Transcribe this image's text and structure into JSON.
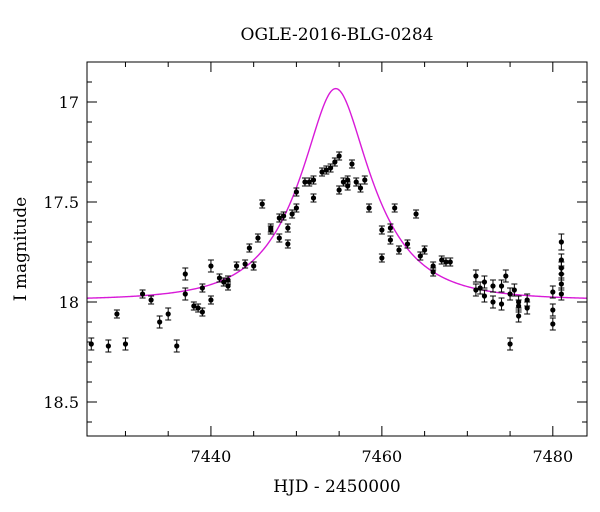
{
  "chart_data": {
    "type": "scatter",
    "title": "OGLE-2016-BLG-0284",
    "xlabel": "HJD - 2450000",
    "ylabel": "I magnitude",
    "xlim": [
      7425.5,
      7484
    ],
    "ylim": [
      18.67,
      16.8
    ],
    "y_inverted": true,
    "grid": false,
    "x_major_ticks": [
      7440,
      7460,
      7480
    ],
    "y_major_ticks": [
      17,
      17.5,
      18,
      18.5
    ],
    "x_minor_step": 5,
    "y_minor_step": 0.1,
    "model_color": "#d81ad8",
    "point_color": "#000000",
    "model": {
      "name": "",
      "t0": 7454.6,
      "u0": 0.4,
      "tE": 8.0,
      "I_base": 17.99
    },
    "series": [
      {
        "name": "",
        "x": [
          7426.0,
          7428.0,
          7429.0,
          7430.0,
          7432.0,
          7433.0,
          7434.0,
          7435.0,
          7436.0,
          7437.0,
          7437.0,
          7438.0,
          7438.5,
          7439.0,
          7439.0,
          7440.0,
          7440.0,
          7441.0,
          7441.5,
          7442.0,
          7442.0,
          7443.0,
          7444.0,
          7444.5,
          7445.0,
          7445.5,
          7446.0,
          7447.0,
          7447.0,
          7448.0,
          7448.0,
          7448.5,
          7449.0,
          7449.0,
          7449.5,
          7450.0,
          7450.0,
          7451.0,
          7451.5,
          7452.0,
          7452.0,
          7453.0,
          7453.5,
          7454.0,
          7454.5,
          7455.0,
          7455.0,
          7455.5,
          7456.0,
          7456.0,
          7456.5,
          7457.0,
          7457.5,
          7458.0,
          7458.5,
          7460.0,
          7460.0,
          7461.0,
          7461.0,
          7461.5,
          7462.0,
          7463.0,
          7464.0,
          7464.5,
          7465.0,
          7466.0,
          7466.0,
          7467.0,
          7467.5,
          7468.0,
          7471.0,
          7471.0,
          7471.5,
          7472.0,
          7472.0,
          7473.0,
          7473.0,
          7474.0,
          7474.0,
          7474.5,
          7475.0,
          7475.0,
          7475.5,
          7476.0,
          7476.0,
          7476.0,
          7477.0,
          7477.0,
          7480.0,
          7480.0,
          7480.0,
          7481.0,
          7481.0,
          7481.0,
          7481.0,
          7481.0,
          7481.0
        ],
        "y": [
          18.21,
          18.22,
          18.06,
          18.21,
          17.96,
          17.99,
          18.1,
          18.06,
          18.22,
          17.86,
          17.96,
          18.02,
          18.03,
          18.05,
          17.93,
          17.99,
          17.82,
          17.88,
          17.9,
          17.89,
          17.92,
          17.82,
          17.81,
          17.73,
          17.82,
          17.68,
          17.51,
          17.63,
          17.64,
          17.58,
          17.68,
          17.57,
          17.63,
          17.71,
          17.56,
          17.45,
          17.53,
          17.4,
          17.4,
          17.39,
          17.48,
          17.35,
          17.34,
          17.33,
          17.3,
          17.27,
          17.44,
          17.4,
          17.42,
          17.39,
          17.31,
          17.4,
          17.43,
          17.39,
          17.53,
          17.64,
          17.78,
          17.63,
          17.69,
          17.53,
          17.74,
          17.71,
          17.56,
          17.77,
          17.74,
          17.82,
          17.85,
          17.79,
          17.8,
          17.8,
          17.87,
          17.94,
          17.93,
          17.9,
          17.97,
          17.92,
          18.0,
          17.92,
          18.01,
          17.87,
          18.21,
          17.96,
          17.94,
          18.0,
          18.02,
          18.07,
          17.99,
          18.03,
          17.95,
          18.04,
          18.11,
          17.7,
          17.79,
          17.83,
          17.86,
          17.91,
          17.96
        ],
        "err": [
          0.03,
          0.03,
          0.02,
          0.03,
          0.02,
          0.02,
          0.03,
          0.03,
          0.03,
          0.03,
          0.03,
          0.02,
          0.02,
          0.02,
          0.02,
          0.02,
          0.03,
          0.02,
          0.02,
          0.02,
          0.02,
          0.02,
          0.02,
          0.02,
          0.02,
          0.02,
          0.02,
          0.02,
          0.02,
          0.02,
          0.02,
          0.02,
          0.02,
          0.02,
          0.02,
          0.02,
          0.02,
          0.02,
          0.02,
          0.02,
          0.02,
          0.02,
          0.02,
          0.02,
          0.02,
          0.02,
          0.02,
          0.02,
          0.02,
          0.02,
          0.02,
          0.02,
          0.02,
          0.02,
          0.02,
          0.02,
          0.02,
          0.02,
          0.02,
          0.02,
          0.02,
          0.02,
          0.02,
          0.02,
          0.02,
          0.02,
          0.02,
          0.02,
          0.02,
          0.02,
          0.03,
          0.03,
          0.03,
          0.03,
          0.03,
          0.03,
          0.03,
          0.03,
          0.03,
          0.03,
          0.03,
          0.03,
          0.03,
          0.03,
          0.03,
          0.03,
          0.03,
          0.03,
          0.03,
          0.03,
          0.03,
          0.04,
          0.03,
          0.03,
          0.03,
          0.03,
          0.03
        ]
      }
    ]
  }
}
